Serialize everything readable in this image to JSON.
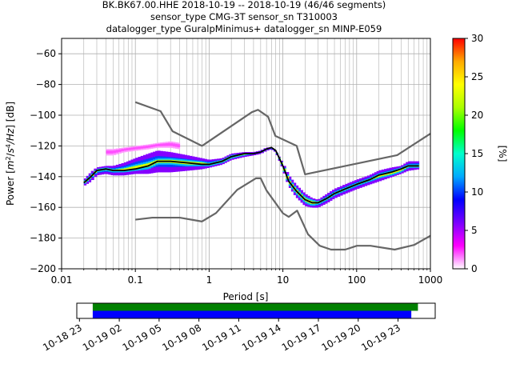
{
  "title_lines": [
    "BK.BK67.00.HHE   2018-10-19 -- 2018-10-19  (46/46 segments)",
    "sensor_type CMG-3T sensor_sn T310003",
    "datalogger_type GuralpMinimus+ datalogger_sn MINP-E059"
  ],
  "chart_data": [
    {
      "type": "heatmap",
      "name": "ppsd",
      "xlabel": "Period [s]",
      "ylabel": "Power [m²/s⁴/Hz] [dB]",
      "ylabel_parts": [
        "Power [",
        "m",
        "2",
        "/",
        "s",
        "4",
        "/Hz",
        "] [dB]"
      ],
      "xscale": "log",
      "xlim": [
        0.01,
        1000
      ],
      "ylim": [
        -200,
        -50
      ],
      "x_ticks": [
        0.01,
        0.1,
        1,
        10,
        100,
        1000
      ],
      "x_tick_labels": [
        "0.01",
        "0.1",
        "1",
        "10",
        "100",
        "1000"
      ],
      "y_ticks": [
        -200,
        -180,
        -160,
        -140,
        -120,
        -100,
        -80,
        -60
      ],
      "y_tick_labels": [
        "−200",
        "−180",
        "−160",
        "−140",
        "−120",
        "−100",
        "−80",
        "−60"
      ],
      "grid": true,
      "colorbar": {
        "label": "[%]",
        "range": [
          0,
          30
        ],
        "ticks": [
          0,
          5,
          10,
          15,
          20,
          25,
          30
        ],
        "tick_labels": [
          "0",
          "5",
          "10",
          "15",
          "20",
          "25",
          "30"
        ],
        "colormap": [
          "#ffffff",
          "#ff00ff",
          "#7a00ff",
          "#0000ff",
          "#00aaff",
          "#00ffcc",
          "#00ff00",
          "#aaff00",
          "#ffff00",
          "#ffaa00",
          "#ff0000"
        ]
      },
      "median": {
        "name": "median",
        "x": [
          0.02,
          0.025,
          0.03,
          0.04,
          0.05,
          0.07,
          0.1,
          0.15,
          0.2,
          0.3,
          0.5,
          0.8,
          1.0,
          1.5,
          2,
          3,
          4,
          5,
          6,
          7,
          8,
          10,
          12,
          15,
          20,
          25,
          30,
          40,
          50,
          70,
          100,
          150,
          200,
          300,
          400,
          500,
          700
        ],
        "y": [
          -144,
          -140,
          -136,
          -135,
          -136,
          -136,
          -135,
          -133,
          -130,
          -130,
          -131,
          -132,
          -132,
          -130,
          -127,
          -125,
          -125,
          -124,
          -122,
          -121,
          -123,
          -133,
          -143,
          -149,
          -155,
          -157,
          -157,
          -154,
          -151,
          -148,
          -145,
          -142,
          -139,
          -137,
          -135,
          -133,
          -133
        ]
      },
      "density": [
        {
          "x": [
            0.02,
            0.025,
            0.03,
            0.04,
            0.05,
            0.07,
            0.1,
            0.15,
            0.2,
            0.3,
            0.5,
            0.8,
            1.0,
            1.5,
            2,
            3,
            4,
            5,
            6,
            7,
            8,
            10,
            12,
            15,
            20,
            25,
            30,
            40,
            50,
            70,
            100,
            150,
            200,
            300,
            400,
            500,
            700
          ],
          "ymax": [
            -142,
            -137,
            -134,
            -133,
            -133,
            -131,
            -128,
            -125,
            -123,
            -124,
            -126,
            -128,
            -129,
            -128,
            -125,
            -124,
            -124,
            -123,
            -121,
            -121,
            -123,
            -131,
            -139,
            -145,
            -151,
            -154,
            -155,
            -151,
            -148,
            -145,
            -142,
            -139,
            -136,
            -134,
            -133,
            -130,
            -130
          ],
          "ymin": [
            -146,
            -143,
            -139,
            -138,
            -139,
            -139,
            -138,
            -138,
            -137,
            -137,
            -136,
            -135,
            -134,
            -132,
            -129,
            -127,
            -126,
            -125,
            -123,
            -122,
            -124,
            -135,
            -146,
            -153,
            -159,
            -160,
            -160,
            -157,
            -154,
            -151,
            -148,
            -145,
            -143,
            -140,
            -138,
            -136,
            -135
          ],
          "pct": 10
        },
        {
          "x": [
            0.04,
            0.05,
            0.07,
            0.1,
            0.15,
            0.2,
            0.3,
            0.4
          ],
          "ymax": [
            -122,
            -122,
            -121,
            -120,
            -119,
            -118,
            -117,
            -118
          ],
          "ymin": [
            -126,
            -126,
            -124,
            -123,
            -122,
            -121,
            -121,
            -122
          ],
          "pct": 2
        },
        {
          "x": [
            0.02,
            0.025,
            0.03,
            0.04,
            0.05,
            0.07,
            0.1,
            0.15,
            0.2,
            0.3,
            0.5,
            0.8,
            1.0,
            1.5,
            2,
            3,
            4,
            5,
            6,
            7,
            8,
            10,
            12,
            15,
            20,
            25,
            30,
            40,
            50,
            70,
            100,
            150,
            200,
            300,
            400,
            500,
            700
          ],
          "ymax": [
            -143,
            -139,
            -135,
            -134,
            -135,
            -134,
            -132,
            -130,
            -128,
            -128,
            -129,
            -130,
            -131,
            -129,
            -126,
            -125,
            -125,
            -124,
            -122,
            -121,
            -123,
            -132,
            -141,
            -147,
            -153,
            -155,
            -156,
            -153,
            -150,
            -147,
            -144,
            -141,
            -138,
            -136,
            -134,
            -132,
            -132
          ],
          "ymin": [
            -145,
            -141,
            -137,
            -136,
            -137,
            -137,
            -136,
            -135,
            -132,
            -132,
            -133,
            -133,
            -133,
            -131,
            -128,
            -126,
            -125,
            -124,
            -122,
            -121,
            -123,
            -134,
            -145,
            -151,
            -157,
            -159,
            -158,
            -155,
            -152,
            -149,
            -146,
            -143,
            -141,
            -139,
            -137,
            -134,
            -134
          ],
          "pct": 22
        }
      ],
      "noise_models": [
        {
          "name": "high-noise-model",
          "x": [
            0.1,
            0.22,
            0.32,
            0.8,
            3.8,
            4.6,
            6.3,
            7.9,
            15.4,
            20,
            354.8,
            1000
          ],
          "y": [
            -91.5,
            -97.4,
            -110.5,
            -120,
            -98,
            -96.5,
            -101,
            -113.5,
            -120,
            -138.5,
            -126,
            -112
          ]
        },
        {
          "name": "low-noise-model",
          "x": [
            0.1,
            0.17,
            0.4,
            0.8,
            1.24,
            2.4,
            4.3,
            5.0,
            6.0,
            10,
            12,
            15.6,
            21.9,
            31.6,
            45,
            70,
            101,
            154,
            328,
            600,
            1000
          ],
          "y": [
            -168,
            -166.7,
            -166.7,
            -169.2,
            -163.7,
            -148.6,
            -141.1,
            -141.1,
            -149,
            -163.8,
            -166.2,
            -162.1,
            -177.5,
            -185,
            -187.5,
            -187.5,
            -185,
            -185,
            -187.5,
            -184.5,
            -178.5
          ]
        }
      ]
    },
    {
      "type": "timeline",
      "name": "data-coverage",
      "ticks": [
        "10-18 23",
        "10-19 02",
        "10-19 05",
        "10-19 08",
        "10-19 11",
        "10-19 14",
        "10-19 17",
        "10-19 20",
        "10-19 23"
      ],
      "tick_hours": [
        -1,
        2,
        5,
        8,
        11,
        14,
        17,
        20,
        23
      ],
      "xlim_hours": [
        -1.2,
        25.8
      ],
      "bars": [
        {
          "name": "available-data",
          "color": "#008000",
          "start_hour": 0,
          "end_hour": 24.5
        },
        {
          "name": "used-data",
          "color": "#0000ff",
          "start_hour": 0,
          "end_hour": 24.0
        }
      ]
    }
  ],
  "colors": {
    "noise_model": "#666666",
    "median": "#000000",
    "grid": "#b0b0b0",
    "axis": "#000000"
  }
}
